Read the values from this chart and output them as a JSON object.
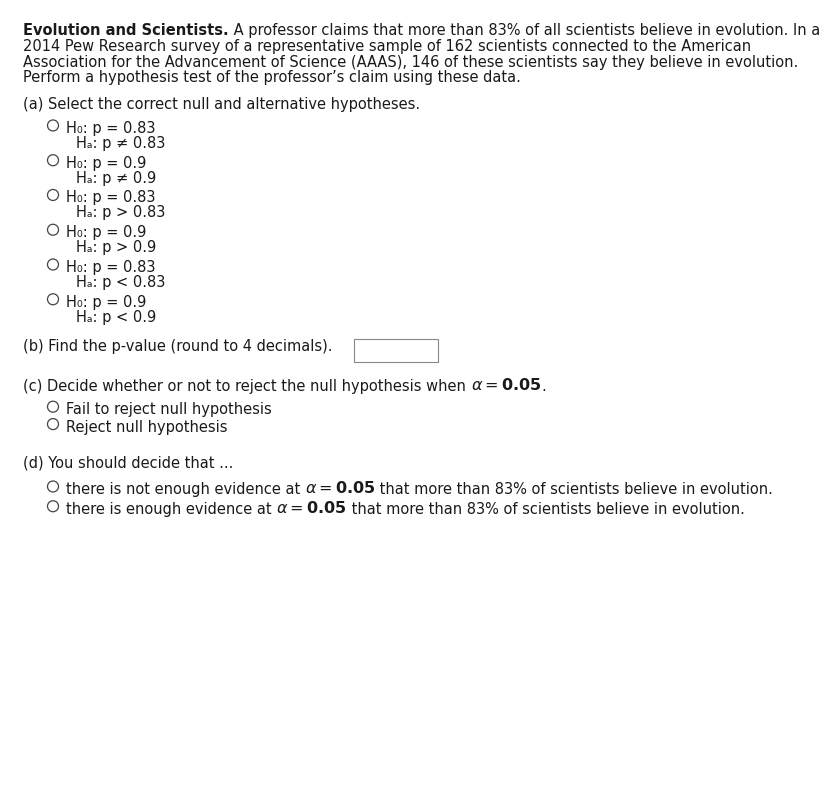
{
  "bg_color": "#ffffff",
  "text_color": "#1a1a1a",
  "font_size": 10.5,
  "para_lines": [
    [
      "bold",
      "Evolution and Scientists.",
      " A professor claims that more than 83% of all scientists believe in evolution. In a"
    ],
    [
      "normal",
      "2014 Pew Research survey of a representative sample of 162 scientists connected to the American"
    ],
    [
      "normal",
      "Association for the Advancement of Science (AAAS), 146 of these scientists say they believe in evolution."
    ],
    [
      "normal",
      "Perform a hypothesis test of the professor’s claim using these data."
    ]
  ],
  "part_a_label": "(a) Select the correct null and alternative hypotheses.",
  "options_a": [
    [
      "H₀: p = 0.83",
      "Hₐ: p ≠ 0.83"
    ],
    [
      "H₀: p = 0.9",
      "Hₐ: p ≠ 0.9"
    ],
    [
      "H₀: p = 0.83",
      "Hₐ: p > 0.83"
    ],
    [
      "H₀: p = 0.9",
      "Hₐ: p > 0.9"
    ],
    [
      "H₀: p = 0.83",
      "Hₐ: p < 0.83"
    ],
    [
      "H₀: p = 0.9",
      "Hₐ: p < 0.9"
    ]
  ],
  "part_b_label": "(b) Find the p-value (round to 4 decimals).",
  "part_c_label_pre": "(c) Decide whether or not to reject the null hypothesis when ",
  "part_c_label_math": "$\\alpha = \\mathbf{0.05}$",
  "part_c_label_post": ".",
  "options_c": [
    "Fail to reject null hypothesis",
    "Reject null hypothesis"
  ],
  "part_d_label": "(d) You should decide that ...",
  "options_d": [
    [
      "there is not enough evidence at ",
      "$\\alpha = \\mathbf{0.05}$",
      " that more than 83% of scientists believe in evolution."
    ],
    [
      "there is enough evidence at ",
      "$\\alpha = \\mathbf{0.05}$",
      " that more than 83% of scientists believe in evolution."
    ]
  ]
}
